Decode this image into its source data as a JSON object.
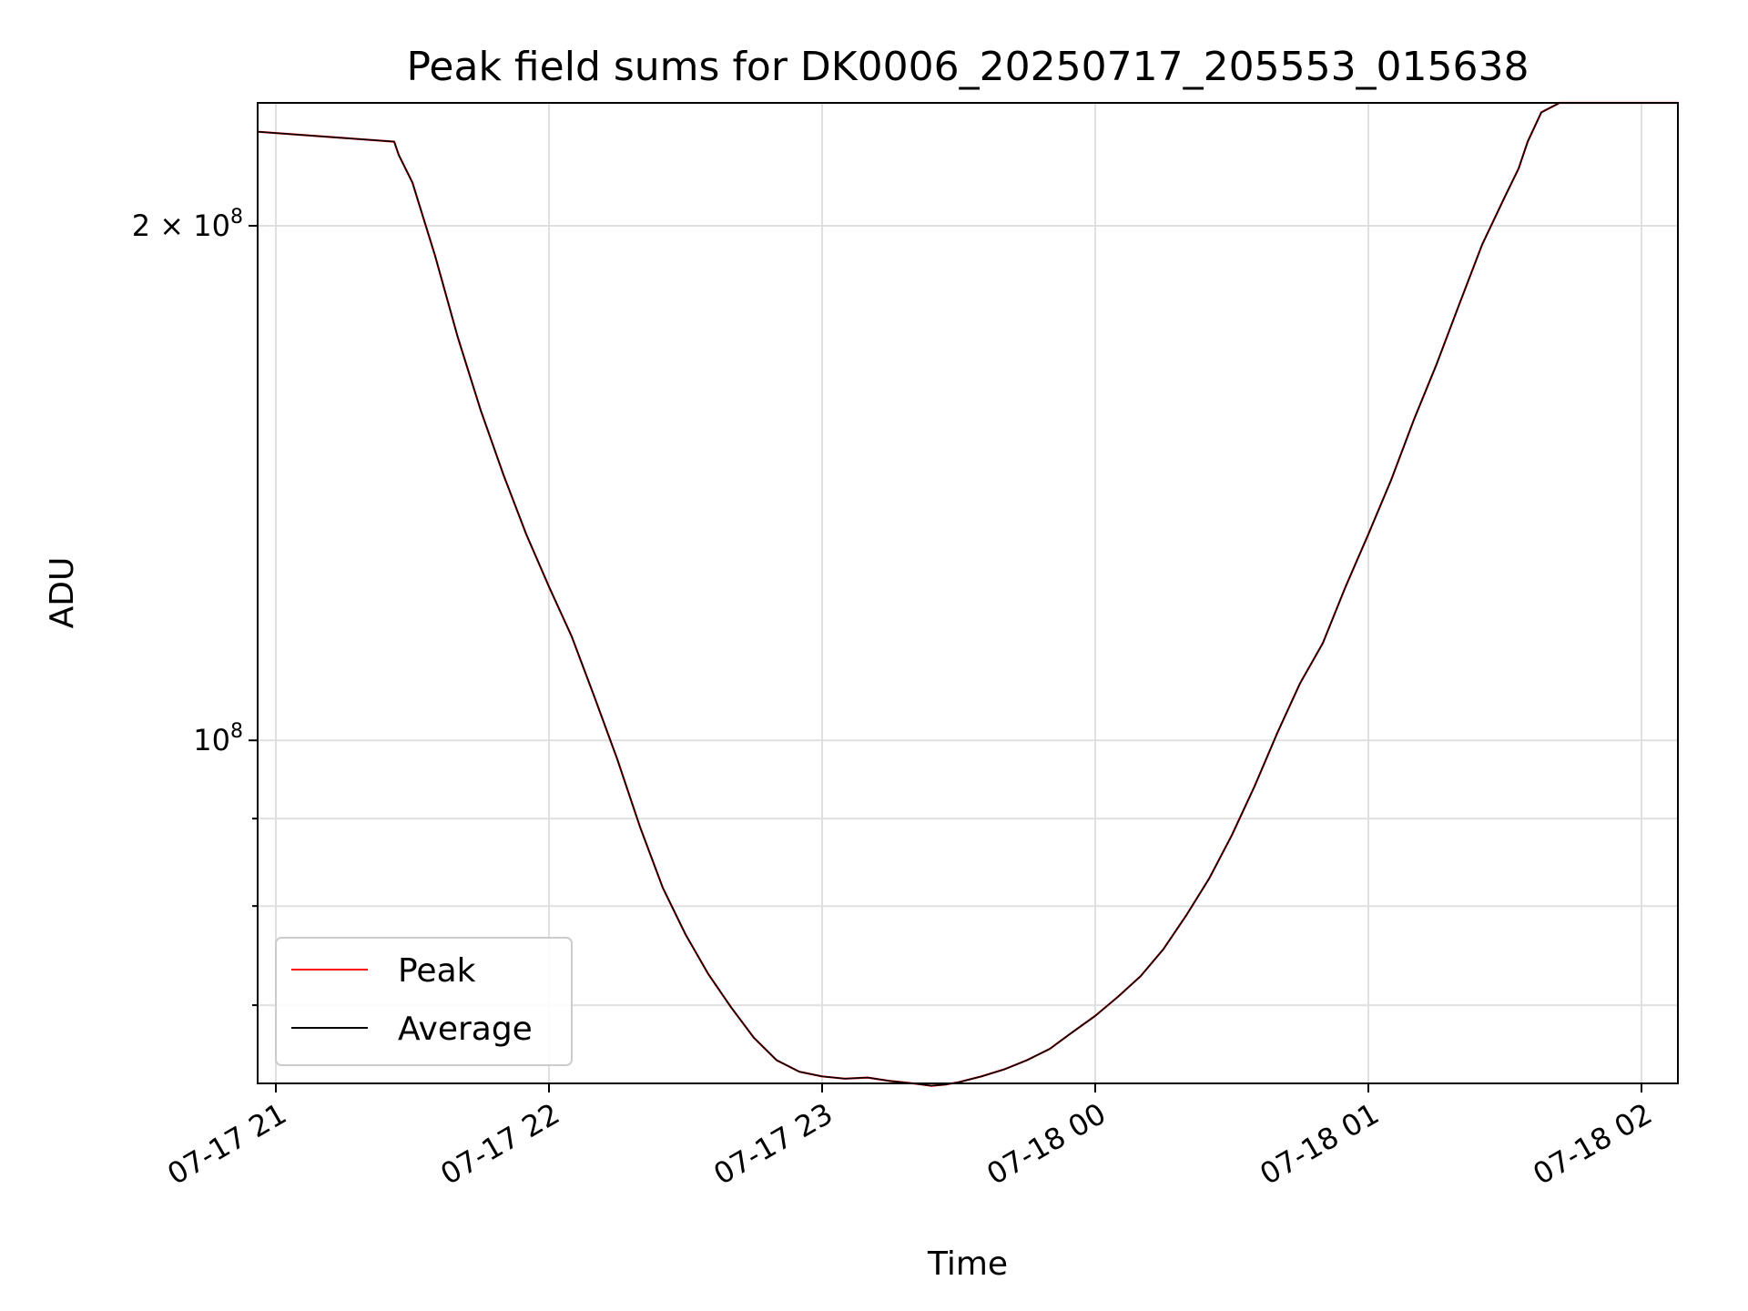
{
  "chart_data": {
    "type": "line",
    "title": "Peak field sums for DK0006_20250717_205553_015638",
    "xlabel": "Time",
    "ylabel": "ADU",
    "yscale": "log",
    "ylim": [
      63000000.0,
      236000000.0
    ],
    "xlim": [
      "2025-07-17 20:56",
      "2025-07-18 02:08"
    ],
    "grid": true,
    "legend_position": "lower-left",
    "x_ticks": [
      "07-17 21",
      "07-17 22",
      "07-17 23",
      "07-18 00",
      "07-18 01",
      "07-18 02"
    ],
    "y_ticks": [
      {
        "value": 100000000.0,
        "base": "10",
        "exp": "8",
        "mult": ""
      },
      {
        "value": 200000000.0,
        "base": "10",
        "exp": "8",
        "mult": "2 × "
      }
    ],
    "x": [
      "2025-07-17 20:56",
      "2025-07-17 21:26",
      "2025-07-17 21:27",
      "2025-07-17 21:30",
      "2025-07-17 21:35",
      "2025-07-17 21:40",
      "2025-07-17 21:45",
      "2025-07-17 21:50",
      "2025-07-17 21:55",
      "2025-07-17 22:00",
      "2025-07-17 22:05",
      "2025-07-17 22:10",
      "2025-07-17 22:15",
      "2025-07-17 22:20",
      "2025-07-17 22:25",
      "2025-07-17 22:30",
      "2025-07-17 22:35",
      "2025-07-17 22:40",
      "2025-07-17 22:45",
      "2025-07-17 22:50",
      "2025-07-17 22:55",
      "2025-07-17 23:00",
      "2025-07-17 23:05",
      "2025-07-17 23:10",
      "2025-07-17 23:15",
      "2025-07-17 23:20",
      "2025-07-17 23:24",
      "2025-07-17 23:27",
      "2025-07-17 23:30",
      "2025-07-17 23:35",
      "2025-07-17 23:40",
      "2025-07-17 23:45",
      "2025-07-17 23:50",
      "2025-07-17 23:55",
      "2025-07-18 00:00",
      "2025-07-18 00:05",
      "2025-07-18 00:10",
      "2025-07-18 00:15",
      "2025-07-18 00:20",
      "2025-07-18 00:25",
      "2025-07-18 00:30",
      "2025-07-18 00:35",
      "2025-07-18 00:40",
      "2025-07-18 00:45",
      "2025-07-18 00:50",
      "2025-07-18 00:55",
      "2025-07-18 01:00",
      "2025-07-18 01:05",
      "2025-07-18 01:10",
      "2025-07-18 01:15",
      "2025-07-18 01:20",
      "2025-07-18 01:25",
      "2025-07-18 01:30",
      "2025-07-18 01:33",
      "2025-07-18 01:35",
      "2025-07-18 01:38",
      "2025-07-18 01:42",
      "2025-07-18 02:08"
    ],
    "series": [
      {
        "name": "Average",
        "color": "#000000",
        "values": [
          227000000,
          224000000,
          220000000,
          212000000,
          192000000,
          172000000,
          156000000,
          143000000,
          132000000,
          123000000,
          115000000,
          106000000,
          97500000,
          89000000,
          82000000,
          77000000,
          73000000,
          69800000,
          67000000,
          65000000,
          64000000,
          63600000,
          63400000,
          63500000,
          63200000,
          63000000,
          62800000,
          62900000,
          63100000,
          63600000,
          64200000,
          65000000,
          66000000,
          67500000,
          69000000,
          70800000,
          72800000,
          75500000,
          79000000,
          83000000,
          88000000,
          94000000,
          101000000,
          108000000,
          114000000,
          123000000,
          132000000,
          142000000,
          154000000,
          166000000,
          180000000,
          195000000,
          208000000,
          216000000,
          224000000,
          233000000,
          236000000,
          236000000
        ]
      },
      {
        "name": "Peak",
        "color": "#ff0000",
        "values": [
          227000000,
          224000000,
          220000000,
          212000000,
          192000000,
          172000000,
          156000000,
          143000000,
          132000000,
          123000000,
          115000000,
          106000000,
          97500000,
          89000000,
          82000000,
          77000000,
          73000000,
          69800000,
          67000000,
          65000000,
          64000000,
          63600000,
          63400000,
          63500000,
          63200000,
          63000000,
          62800000,
          62900000,
          63100000,
          63600000,
          64200000,
          65000000,
          66000000,
          67500000,
          69000000,
          70800000,
          72800000,
          75500000,
          79000000,
          83000000,
          88000000,
          94000000,
          101000000,
          108000000,
          114000000,
          123000000,
          132000000,
          142000000,
          154000000,
          166000000,
          180000000,
          195000000,
          208000000,
          216000000,
          224000000,
          233000000,
          236000000,
          236000000
        ]
      }
    ],
    "legend": [
      {
        "label": "Peak",
        "color": "#ff0000"
      },
      {
        "label": "Average",
        "color": "#000000"
      }
    ]
  }
}
